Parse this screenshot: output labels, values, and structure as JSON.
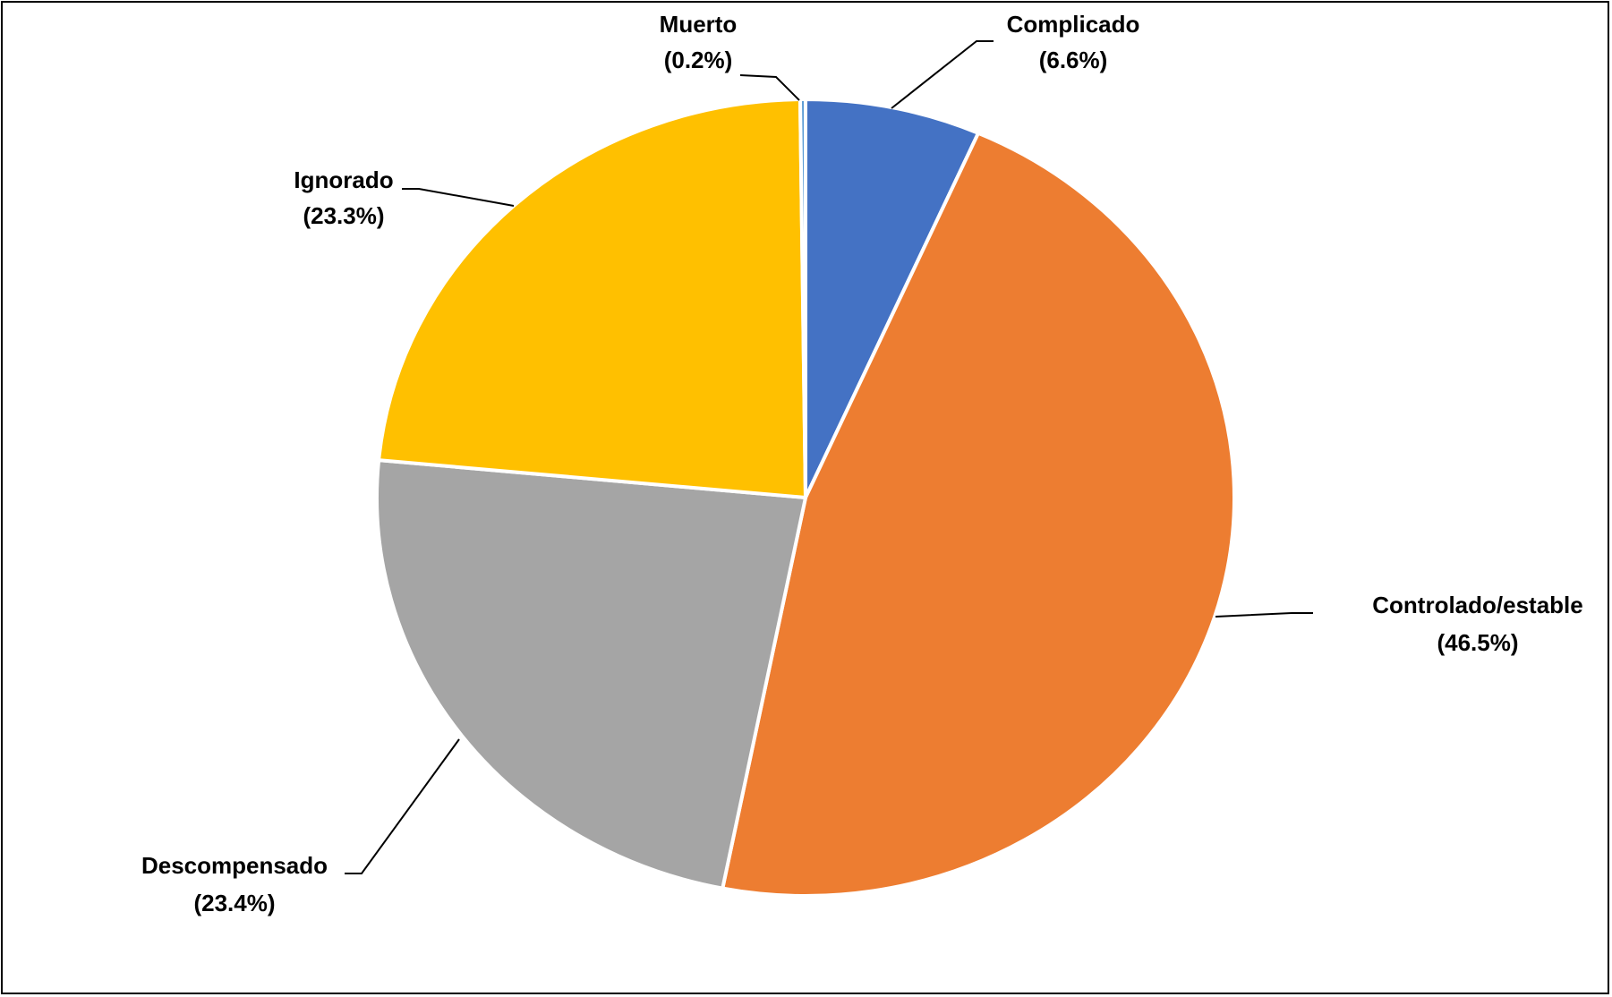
{
  "chart_data": {
    "type": "pie",
    "categories": [
      "Complicado",
      "Controlado/estable",
      "Descompensado",
      "Ignorado",
      "Muerto"
    ],
    "values": [
      6.6,
      46.5,
      23.4,
      23.3,
      0.2
    ],
    "value_labels": [
      "(6.6%)",
      "(46.5%)",
      "(23.4%)",
      "(23.3%)",
      "(0.2%)"
    ],
    "colors": [
      "#4472C4",
      "#ED7D31",
      "#A5A5A5",
      "#FFC000",
      "#5B9BD5"
    ],
    "start_angle": "12 o'clock",
    "direction": "clockwise",
    "legend": "none",
    "data_labels": "outside with leader lines"
  }
}
